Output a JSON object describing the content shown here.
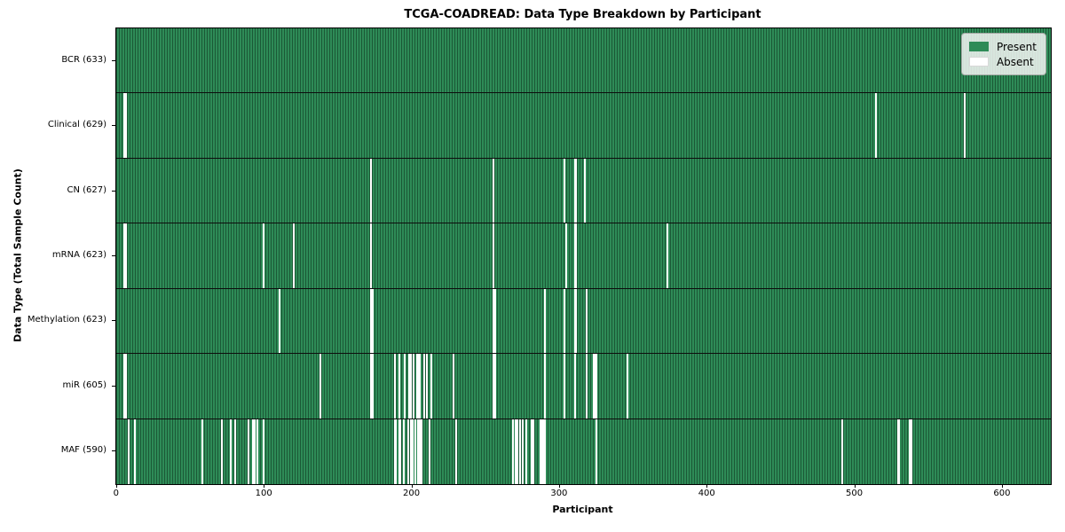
{
  "chart_data": {
    "type": "heatmap",
    "title": "TCGA-COADREAD: Data Type Breakdown by Participant",
    "xlabel": "Participant",
    "ylabel": "Data Type (Total Sample Count)",
    "legend": {
      "present": "Present",
      "absent": "Absent",
      "position": "upper right"
    },
    "colors": {
      "present": "#2e8b57",
      "present_edge": "#1b5936",
      "absent": "#ffffff",
      "row_separator": "#0d0d0d",
      "axis": "#000000",
      "legend_bg": "#f4f6f4"
    },
    "grid": false,
    "total_participants": 633,
    "xlim": [
      -0.5,
      632.5
    ],
    "x_ticks": [
      0,
      100,
      200,
      300,
      400,
      500,
      600
    ],
    "rows": [
      {
        "id": "bcr",
        "name": "BCR",
        "label": "BCR (633)",
        "present_count": 633,
        "absent_participants": []
      },
      {
        "id": "clinical",
        "name": "Clinical",
        "label": "Clinical (629)",
        "present_count": 629,
        "absent_participants": [
          5,
          6,
          514,
          574
        ]
      },
      {
        "id": "cn",
        "name": "CN",
        "label": "CN (627)",
        "present_count": 627,
        "absent_participants": [
          172,
          255,
          303,
          310,
          311,
          317
        ]
      },
      {
        "id": "mrna",
        "name": "mRNA",
        "label": "mRNA (623)",
        "present_count": 623,
        "absent_participants": [
          5,
          6,
          99,
          120,
          172,
          255,
          304,
          310,
          311,
          373
        ]
      },
      {
        "id": "methylation",
        "name": "Methylation",
        "label": "Methylation (623)",
        "present_count": 623,
        "absent_participants": [
          110,
          172,
          173,
          255,
          256,
          290,
          303,
          310,
          311,
          318
        ]
      },
      {
        "id": "mir",
        "name": "miR",
        "label": "miR (605)",
        "present_count": 605,
        "absent_participants": [
          5,
          6,
          138,
          172,
          173,
          188,
          191,
          195,
          198,
          199,
          201,
          203,
          204,
          205,
          208,
          210,
          213,
          228,
          255,
          256,
          290,
          303,
          310,
          318,
          323,
          324,
          325,
          346
        ]
      },
      {
        "id": "maf",
        "name": "MAF",
        "label": "MAF (590)",
        "present_count": 590,
        "absent_participants": [
          8,
          12,
          58,
          71,
          77,
          80,
          89,
          92,
          93,
          95,
          99,
          188,
          189,
          191,
          192,
          194,
          197,
          199,
          200,
          202,
          204,
          205,
          206,
          212,
          230,
          268,
          270,
          271,
          273,
          275,
          277,
          281,
          282,
          287,
          288,
          289,
          290,
          325,
          491,
          529,
          530,
          537,
          538
        ]
      }
    ]
  }
}
